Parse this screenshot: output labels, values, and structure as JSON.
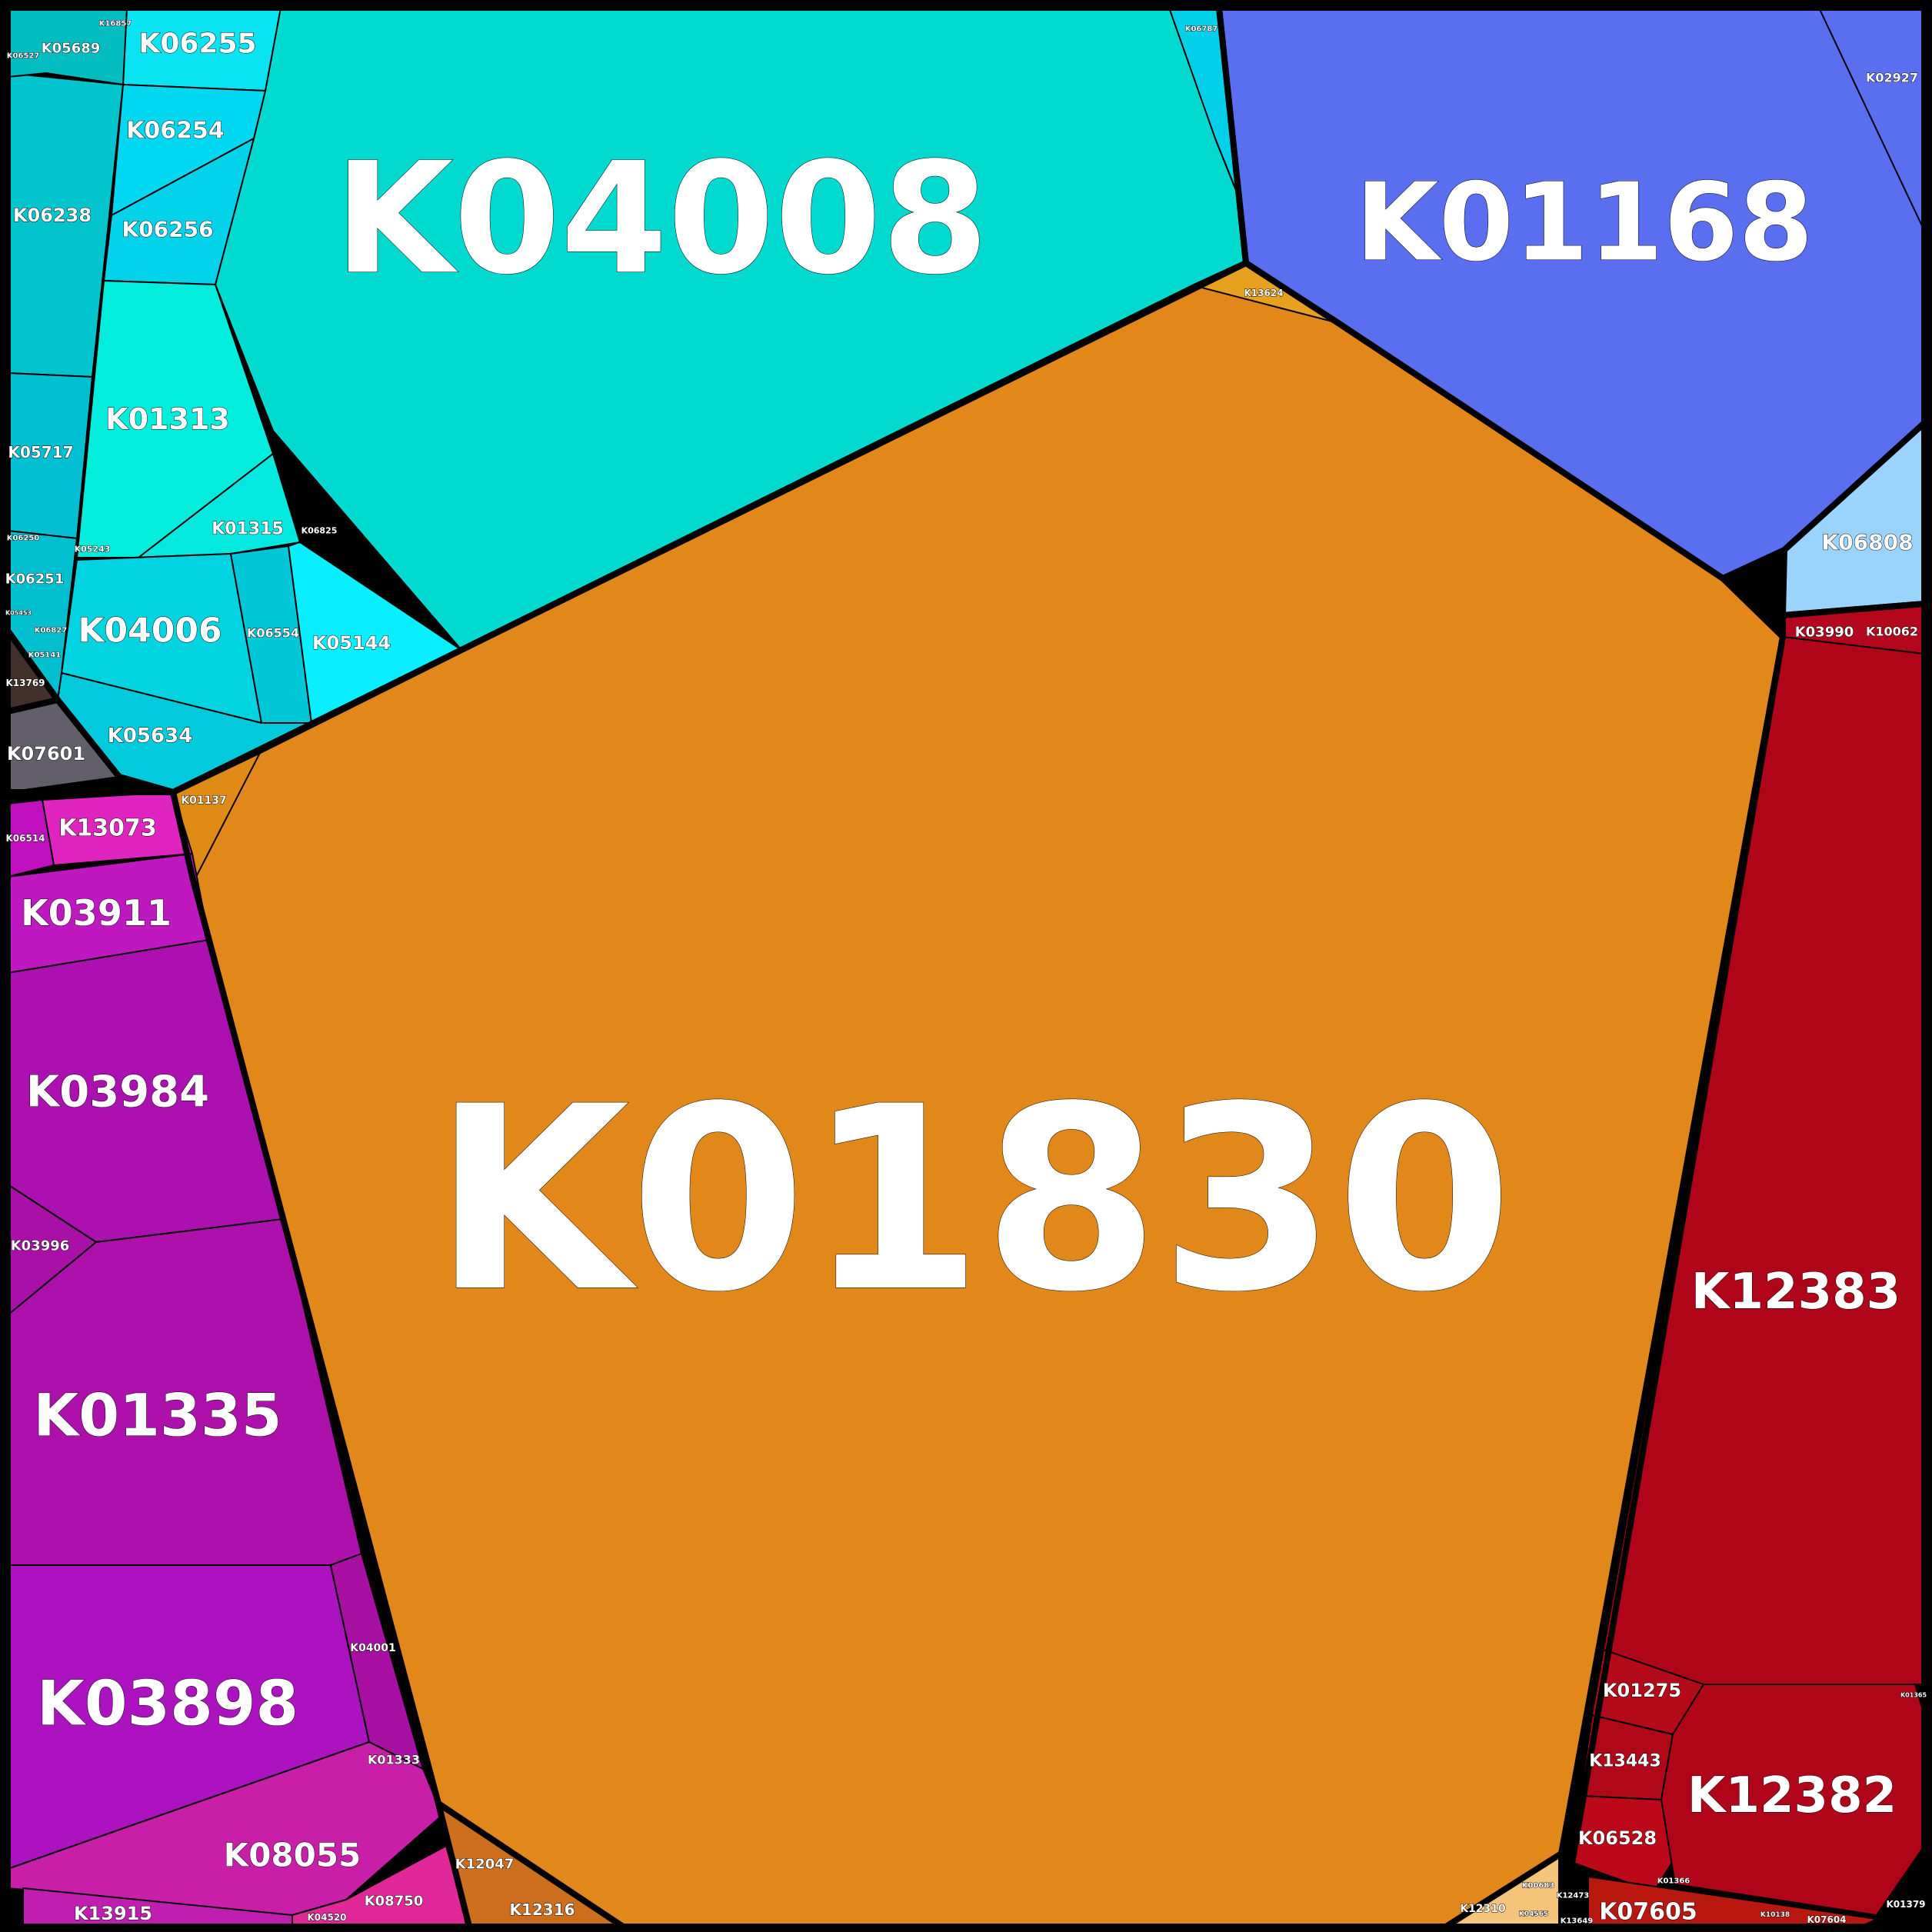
{
  "colors": {
    "cyan_group": "#02d9cf",
    "blue_group": "#5a6ff0",
    "orange_group": "#e2881b",
    "red_group": "#b00419",
    "purple_group": "#ad10b0",
    "border": "#000000",
    "label": "#ffffff"
  },
  "cells": [
    {
      "id": "K04008",
      "color": "#02d9cf"
    },
    {
      "id": "K06255",
      "color": "#0ae3f2"
    },
    {
      "id": "K06254",
      "color": "#02d8f2"
    },
    {
      "id": "K06256",
      "color": "#03d3ea"
    },
    {
      "id": "K01313",
      "color": "#02eddc"
    },
    {
      "id": "K01315",
      "color": "#05e8e0"
    },
    {
      "id": "K04006",
      "color": "#02d3e0"
    },
    {
      "id": "K06554",
      "color": "#02c7d8"
    },
    {
      "id": "K05144",
      "color": "#0aefff"
    },
    {
      "id": "K05634",
      "color": "#02c9dc"
    },
    {
      "id": "K06238",
      "color": "#02c4cc"
    },
    {
      "id": "K05717",
      "color": "#02c0d2"
    },
    {
      "id": "K05689",
      "color": "#02bcc0"
    },
    {
      "id": "K06251",
      "color": "#02bfd0"
    },
    {
      "id": "K06787",
      "color": "#02d0e8"
    },
    {
      "id": "K13769",
      "color": "#42302c"
    },
    {
      "id": "K07601",
      "color": "#625e6a"
    },
    {
      "id": "K01168",
      "color": "#5a6ff0"
    },
    {
      "id": "K06808",
      "color": "#9ad4fc"
    },
    {
      "id": "K01830",
      "color": "#e2881b"
    },
    {
      "id": "K13624",
      "color": "#e8a020"
    },
    {
      "id": "K01137",
      "color": "#de8a14"
    },
    {
      "id": "K12383",
      "color": "#b00419"
    },
    {
      "id": "K03990",
      "color": "#b4061c"
    },
    {
      "id": "K01275",
      "color": "#b40a1a"
    },
    {
      "id": "K13443",
      "color": "#b00818"
    },
    {
      "id": "K06528",
      "color": "#bc0818"
    },
    {
      "id": "K12382",
      "color": "#b00419"
    },
    {
      "id": "K07605",
      "color": "#b81810"
    },
    {
      "id": "K13073",
      "color": "#e024c0"
    },
    {
      "id": "K06514",
      "color": "#c010c0"
    },
    {
      "id": "K03911",
      "color": "#c018c0"
    },
    {
      "id": "K03984",
      "color": "#ad10b0"
    },
    {
      "id": "K03996",
      "color": "#a810a8"
    },
    {
      "id": "K01335",
      "color": "#ae10ac"
    },
    {
      "id": "K03898",
      "color": "#ad12c0"
    },
    {
      "id": "K04001",
      "color": "#a810a4"
    },
    {
      "id": "K08055",
      "color": "#c81ea8"
    },
    {
      "id": "K13915",
      "color": "#c01eb0"
    },
    {
      "id": "K08750",
      "color": "#e02898"
    },
    {
      "id": "K12047",
      "color": "#cc6e1e"
    },
    {
      "id": "K12310",
      "color": "#f4c47a"
    }
  ],
  "labels": [
    "K04008",
    "K01168",
    "K01830",
    "K12383",
    "K12382",
    "K01335",
    "K03898",
    "K03984",
    "K03911",
    "K06255",
    "K06254",
    "K06256",
    "K06238",
    "K01313",
    "K01315",
    "K05717",
    "K04006",
    "K06554",
    "K05144",
    "K05634",
    "K06251",
    "K05689",
    "K07601",
    "K13769",
    "K13073",
    "K06514",
    "K03996",
    "K04001",
    "K01333",
    "K08055",
    "K13915",
    "K08750",
    "K04520",
    "K12047",
    "K12316",
    "K01137",
    "K06808",
    "K02927",
    "K03990",
    "K10062",
    "K01275",
    "K13443",
    "K06528",
    "K07605",
    "K07604",
    "K01379",
    "K12310",
    "K13624",
    "K06787",
    "K06825",
    "K05243",
    "K06250",
    "K06527",
    "K16857",
    "K05453",
    "K06827",
    "K05141",
    "K01366",
    "K01365",
    "K13649",
    "K12473",
    "K00683",
    "K04565",
    "K10138"
  ]
}
